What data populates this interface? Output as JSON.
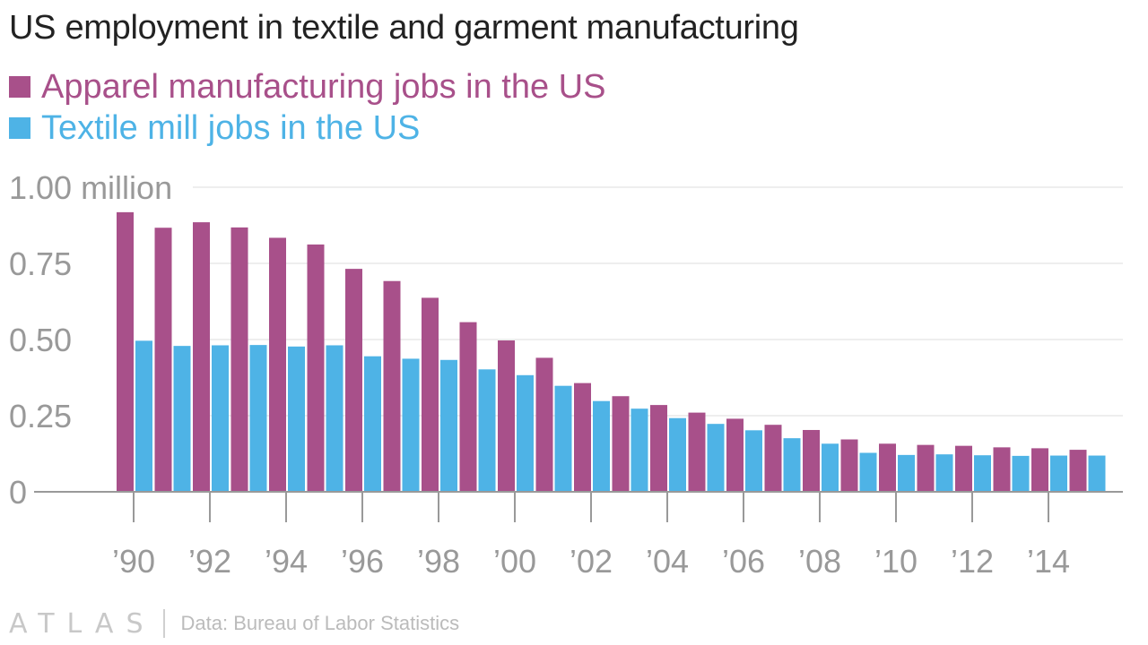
{
  "title": "US employment in textile and garment manufacturing",
  "footer": {
    "logo": "ATLAS",
    "source": "Data: Bureau of Labor Statistics"
  },
  "colors": {
    "apparel": "#a8508a",
    "textile": "#4eb3e6"
  },
  "chart_data": {
    "type": "bar",
    "title": "US employment in textile and garment manufacturing",
    "categories": [
      "1990",
      "1991",
      "1992",
      "1993",
      "1994",
      "1995",
      "1996",
      "1997",
      "1998",
      "1999",
      "2000",
      "2001",
      "2002",
      "2003",
      "2004",
      "2005",
      "2006",
      "2007",
      "2008",
      "2009",
      "2010",
      "2011",
      "2012",
      "2013",
      "2014",
      "2015"
    ],
    "x_tick_labels": [
      {
        "category": "1990",
        "label": "’90"
      },
      {
        "category": "1992",
        "label": "’92"
      },
      {
        "category": "1994",
        "label": "’94"
      },
      {
        "category": "1996",
        "label": "’96"
      },
      {
        "category": "1998",
        "label": "’98"
      },
      {
        "category": "2000",
        "label": "’00"
      },
      {
        "category": "2002",
        "label": "’02"
      },
      {
        "category": "2004",
        "label": "’04"
      },
      {
        "category": "2006",
        "label": "’06"
      },
      {
        "category": "2008",
        "label": "’08"
      },
      {
        "category": "2010",
        "label": "’10"
      },
      {
        "category": "2012",
        "label": "’12"
      },
      {
        "category": "2014",
        "label": "’14"
      }
    ],
    "y_ticks": [
      {
        "value": 0,
        "label": "0"
      },
      {
        "value": 0.25,
        "label": "0.25"
      },
      {
        "value": 0.5,
        "label": "0.50"
      },
      {
        "value": 0.75,
        "label": "0.75"
      },
      {
        "value": 1.0,
        "label": "1.00 million"
      }
    ],
    "ylim": [
      0,
      1.0
    ],
    "grid": true,
    "legend_position": "top-left",
    "series": [
      {
        "name": "Apparel manufacturing jobs in the US",
        "color": "#a8508a",
        "values": [
          0.918,
          0.867,
          0.885,
          0.868,
          0.834,
          0.812,
          0.732,
          0.692,
          0.637,
          0.557,
          0.497,
          0.44,
          0.357,
          0.314,
          0.285,
          0.26,
          0.24,
          0.22,
          0.203,
          0.172,
          0.158,
          0.154,
          0.151,
          0.146,
          0.143,
          0.138
        ]
      },
      {
        "name": "Textile mill jobs in the US",
        "color": "#4eb3e6",
        "values": [
          0.496,
          0.479,
          0.481,
          0.482,
          0.477,
          0.481,
          0.445,
          0.437,
          0.433,
          0.402,
          0.383,
          0.348,
          0.298,
          0.273,
          0.242,
          0.223,
          0.202,
          0.176,
          0.158,
          0.128,
          0.121,
          0.123,
          0.12,
          0.118,
          0.119,
          0.119
        ]
      }
    ]
  }
}
